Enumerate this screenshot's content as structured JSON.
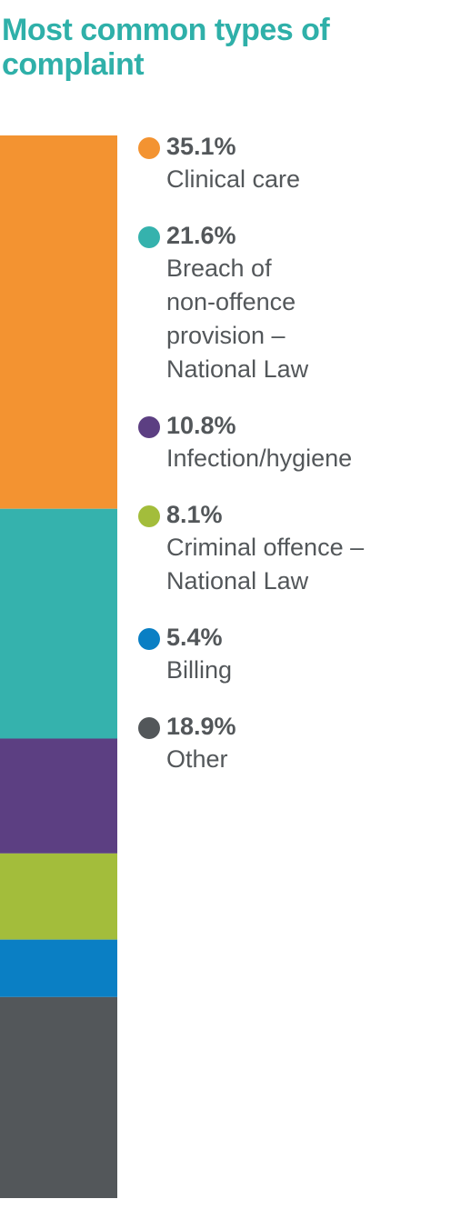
{
  "chart_data": {
    "type": "stacked-bar",
    "title": "Most common types of complaint",
    "categories": [
      "Clinical care",
      "Breach of\nnon-offence\nprovision –\nNational Law",
      "Infection/hygiene",
      "Criminal offence –\nNational Law",
      "Billing",
      "Other"
    ],
    "values": [
      35.1,
      21.6,
      10.8,
      8.1,
      5.4,
      18.9
    ],
    "value_labels": [
      "35.1%",
      "21.6%",
      "10.8%",
      "8.1%",
      "5.4%",
      "18.9%"
    ],
    "colors": [
      "#f39331",
      "#35b2ad",
      "#5c3f82",
      "#a3bd3b",
      "#0a7fc4",
      "#53575a"
    ]
  }
}
